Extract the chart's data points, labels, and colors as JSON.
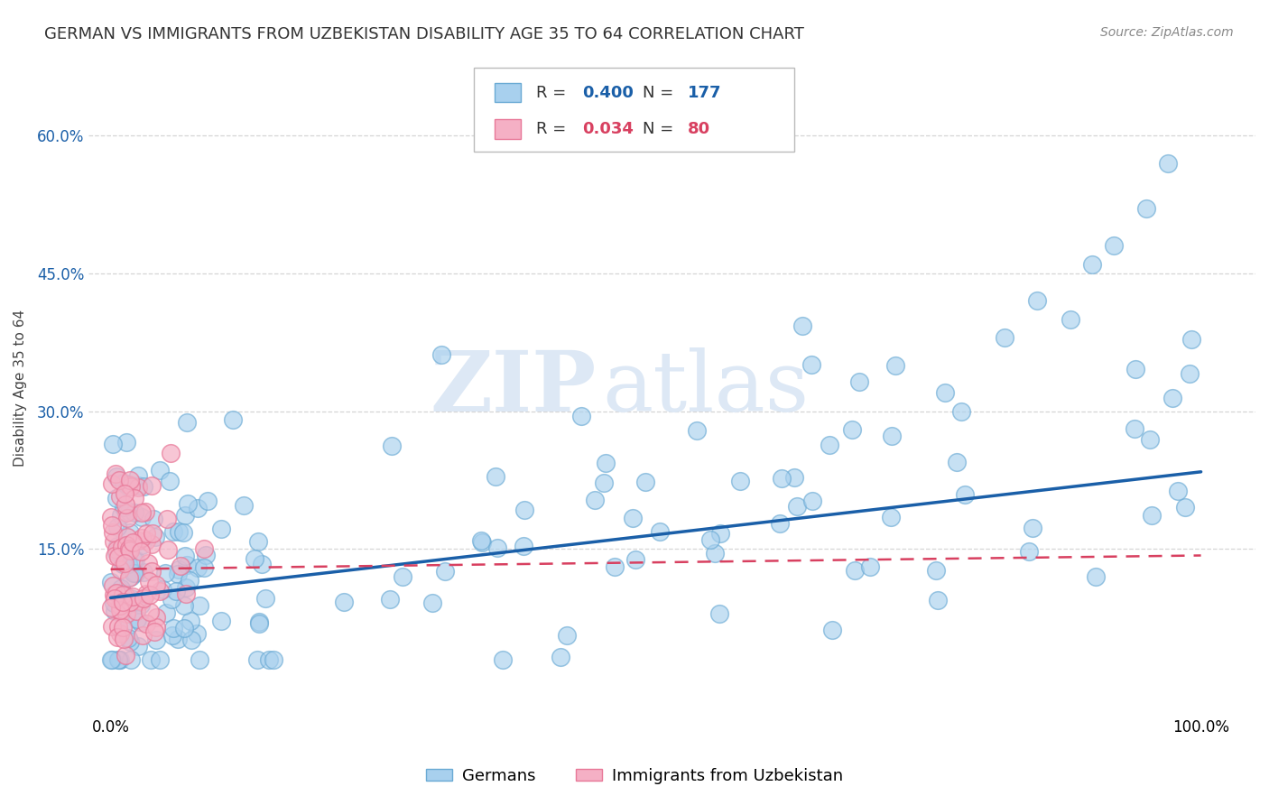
{
  "title": "GERMAN VS IMMIGRANTS FROM UZBEKISTAN DISABILITY AGE 35 TO 64 CORRELATION CHART",
  "source": "Source: ZipAtlas.com",
  "ylabel": "Disability Age 35 to 64",
  "ytick_labels": [
    "15.0%",
    "30.0%",
    "45.0%",
    "60.0%"
  ],
  "ytick_values": [
    0.15,
    0.3,
    0.45,
    0.6
  ],
  "xtick_labels": [
    "0.0%",
    "100.0%"
  ],
  "xtick_values": [
    0.0,
    1.0
  ],
  "xlim": [
    -0.02,
    1.05
  ],
  "ylim": [
    -0.03,
    0.68
  ],
  "german_R": 0.4,
  "german_N": 177,
  "uzbek_R": 0.034,
  "uzbek_N": 80,
  "german_fill": "#a8d0ee",
  "german_edge": "#6aaad4",
  "uzbek_fill": "#f5b0c5",
  "uzbek_edge": "#e87898",
  "trend_german": "#1a5fa8",
  "trend_uzbek": "#d84060",
  "watermark_zip": "ZIP",
  "watermark_atlas": "atlas",
  "watermark_color": "#dde8f5",
  "legend_labels": [
    "Germans",
    "Immigrants from Uzbekistan"
  ],
  "bg": "#ffffff",
  "grid_color": "#cccccc",
  "title_fontsize": 13,
  "source_fontsize": 10,
  "axis_label_fontsize": 11,
  "tick_fontsize": 12,
  "legend_fontsize": 13,
  "trend_german_y0": 0.097,
  "trend_german_y1": 0.234,
  "trend_uzbek_y0": 0.128,
  "trend_uzbek_y1": 0.143
}
